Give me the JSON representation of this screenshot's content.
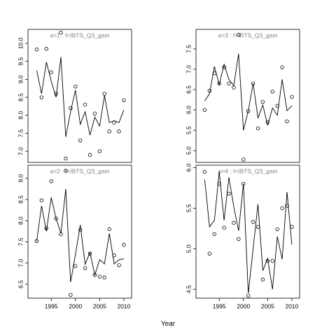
{
  "xlabel": "Year",
  "chart_data": [
    {
      "type": "line",
      "title": "a=1  :  f=IBTS_Q3_gam",
      "x": [
        1992,
        1993,
        1994,
        1995,
        1996,
        1997,
        1998,
        1999,
        2000,
        2001,
        2002,
        2003,
        2004,
        2005,
        2006,
        2007,
        2008,
        2009,
        2010
      ],
      "xlim": [
        1990.2,
        2011.6
      ],
      "ylim": [
        6.69,
        10.39
      ],
      "yticks": [
        {
          "value": 7,
          "label": "7.0"
        },
        {
          "value": 7.5,
          "label": "7.5"
        },
        {
          "value": 8,
          "label": "8.0"
        },
        {
          "value": 8.5,
          "label": "8.5"
        },
        {
          "value": 9,
          "label": "9.0"
        },
        {
          "value": 9.5,
          "label": "9.5"
        },
        {
          "value": 10,
          "label": "10.0"
        }
      ],
      "series": [
        {
          "marker": "circle",
          "color": "#000000",
          "values": [
            9.83,
            8.5,
            9.85,
            9.2,
            8.6,
            10.3,
            6.8,
            8.2,
            8.8,
            7.3,
            8.3,
            6.9,
            8.05,
            7.0,
            8.6,
            7.55,
            7.8,
            7.55,
            8.42
          ]
        },
        {
          "marker": "none",
          "color": "#000000",
          "values": [
            9.25,
            8.6,
            9.48,
            8.95,
            8.5,
            9.62,
            7.4,
            8.1,
            8.7,
            7.75,
            8.1,
            7.45,
            7.95,
            7.7,
            8.55,
            7.8,
            7.85,
            7.8,
            8.15
          ]
        }
      ]
    },
    {
      "type": "line",
      "title": "a=3  :  f=IBTS_Q3_gam",
      "x": [
        1992,
        1993,
        1994,
        1995,
        1996,
        1997,
        1998,
        1999,
        2000,
        2001,
        2002,
        2003,
        2004,
        2005,
        2006,
        2007,
        2008,
        2009,
        2010
      ],
      "xlim": [
        1990.2,
        2011.6
      ],
      "ylim": [
        4.71,
        7.98
      ],
      "yticks": [
        {
          "value": 5,
          "label": "5.0"
        },
        {
          "value": 5.5,
          "label": "5.5"
        },
        {
          "value": 6,
          "label": "6.0"
        },
        {
          "value": 6.5,
          "label": "6.5"
        },
        {
          "value": 7,
          "label": "7.0"
        },
        {
          "value": 7.5,
          "label": "7.5"
        }
      ],
      "series": [
        {
          "marker": "circle",
          "color": "#000000",
          "values": [
            6.0,
            6.47,
            6.9,
            6.65,
            7.05,
            6.65,
            6.55,
            7.85,
            4.78,
            5.97,
            6.65,
            5.55,
            6.2,
            5.7,
            6.45,
            6.1,
            7.05,
            5.72,
            6.32
          ]
        },
        {
          "marker": "none",
          "color": "#000000",
          "values": [
            6.22,
            6.4,
            7.07,
            6.62,
            7.12,
            6.75,
            6.6,
            7.38,
            5.5,
            5.98,
            6.65,
            5.8,
            6.12,
            5.62,
            6.05,
            5.87,
            6.75,
            5.98,
            6.1
          ]
        }
      ]
    },
    {
      "type": "line",
      "title": "a=2  :  f=IBTS_Q3_gam",
      "x": [
        1992,
        1993,
        1994,
        1995,
        1996,
        1997,
        1998,
        1999,
        2000,
        2001,
        2002,
        2003,
        2004,
        2005,
        2006,
        2007,
        2008,
        2009,
        2010
      ],
      "xlim": [
        1990.2,
        2011.6
      ],
      "xticks": [
        1995,
        2000,
        2005,
        2010
      ],
      "ylim": [
        6.17,
        9.31
      ],
      "yticks": [
        {
          "value": 6.5,
          "label": "6.5"
        },
        {
          "value": 7,
          "label": "7.0"
        },
        {
          "value": 7.5,
          "label": "7.5"
        },
        {
          "value": 8,
          "label": "8.0"
        },
        {
          "value": 8.5,
          "label": "8.5"
        },
        {
          "value": 9,
          "label": "9.0"
        }
      ],
      "series": [
        {
          "marker": "circle",
          "color": "#000000",
          "values": [
            7.52,
            8.48,
            7.82,
            8.93,
            8.05,
            7.68,
            9.18,
            6.25,
            6.93,
            7.78,
            6.88,
            7.22,
            6.72,
            6.68,
            6.66,
            7.8,
            7.18,
            6.95,
            7.43
          ]
        },
        {
          "marker": "none",
          "color": "#000000",
          "values": [
            7.52,
            8.35,
            7.75,
            8.55,
            8.05,
            7.7,
            8.75,
            6.55,
            7.2,
            7.9,
            6.97,
            7.25,
            6.72,
            7.08,
            6.98,
            7.7,
            6.98,
            7.08,
            7.1
          ]
        }
      ]
    },
    {
      "type": "line",
      "title": "a=4  :  f=IBTS_Q3_gam",
      "x": [
        1992,
        1993,
        1994,
        1995,
        1996,
        1997,
        1998,
        1999,
        2000,
        2001,
        2002,
        2003,
        2004,
        2005,
        2006,
        2007,
        2008,
        2009,
        2010
      ],
      "xlim": [
        1990.2,
        2011.6
      ],
      "xticks": [
        1995,
        2000,
        2005,
        2010
      ],
      "ylim": [
        4.39,
        6.03
      ],
      "yticks": [
        {
          "value": 4.5,
          "label": "4.5"
        },
        {
          "value": 5,
          "label": "5.0"
        },
        {
          "value": 5.5,
          "label": "5.5"
        },
        {
          "value": 6,
          "label": "6.0"
        }
      ],
      "series": [
        {
          "marker": "circle",
          "color": "#000000",
          "values": [
            5.95,
            4.94,
            5.18,
            5.8,
            5.26,
            5.68,
            5.32,
            5.12,
            5.8,
            4.42,
            5.33,
            5.27,
            4.62,
            4.85,
            4.85,
            5.24,
            5.5,
            5.53,
            5.27
          ]
        },
        {
          "marker": "none",
          "color": "#000000",
          "values": [
            5.85,
            5.27,
            5.35,
            5.95,
            5.35,
            5.88,
            5.52,
            5.22,
            5.8,
            4.45,
            5.0,
            5.55,
            4.73,
            4.88,
            4.5,
            5.15,
            4.87,
            5.7,
            5.05
          ]
        }
      ]
    }
  ]
}
